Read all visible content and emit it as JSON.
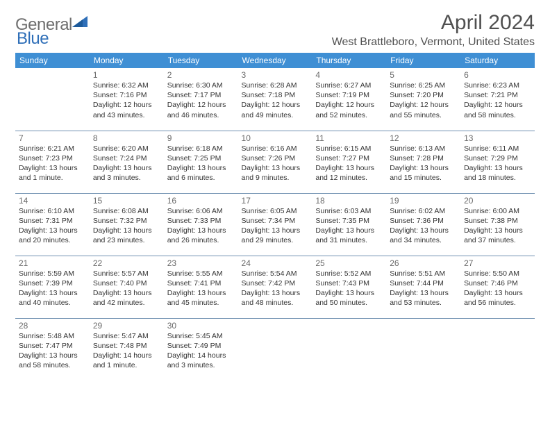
{
  "brand": {
    "general": "General",
    "blue": "Blue"
  },
  "title": "April 2024",
  "location": "West Brattleboro, Vermont, United States",
  "colors": {
    "header_bg": "#3f8fd4",
    "header_text": "#ffffff",
    "rule": "#6e8fb0",
    "text": "#333333",
    "muted": "#6a6a6a",
    "brand_gray": "#6f6f6f",
    "brand_blue": "#2f6fb8",
    "background": "#ffffff"
  },
  "typography": {
    "title_fontsize": 30,
    "location_fontsize": 16,
    "header_cell_fontsize": 12,
    "daynum_fontsize": 12,
    "body_fontsize": 10.5
  },
  "day_headers": [
    "Sunday",
    "Monday",
    "Tuesday",
    "Wednesday",
    "Thursday",
    "Friday",
    "Saturday"
  ],
  "weeks": [
    [
      null,
      {
        "n": "1",
        "sunrise": "Sunrise: 6:32 AM",
        "sunset": "Sunset: 7:16 PM",
        "d1": "Daylight: 12 hours",
        "d2": "and 43 minutes."
      },
      {
        "n": "2",
        "sunrise": "Sunrise: 6:30 AM",
        "sunset": "Sunset: 7:17 PM",
        "d1": "Daylight: 12 hours",
        "d2": "and 46 minutes."
      },
      {
        "n": "3",
        "sunrise": "Sunrise: 6:28 AM",
        "sunset": "Sunset: 7:18 PM",
        "d1": "Daylight: 12 hours",
        "d2": "and 49 minutes."
      },
      {
        "n": "4",
        "sunrise": "Sunrise: 6:27 AM",
        "sunset": "Sunset: 7:19 PM",
        "d1": "Daylight: 12 hours",
        "d2": "and 52 minutes."
      },
      {
        "n": "5",
        "sunrise": "Sunrise: 6:25 AM",
        "sunset": "Sunset: 7:20 PM",
        "d1": "Daylight: 12 hours",
        "d2": "and 55 minutes."
      },
      {
        "n": "6",
        "sunrise": "Sunrise: 6:23 AM",
        "sunset": "Sunset: 7:21 PM",
        "d1": "Daylight: 12 hours",
        "d2": "and 58 minutes."
      }
    ],
    [
      {
        "n": "7",
        "sunrise": "Sunrise: 6:21 AM",
        "sunset": "Sunset: 7:23 PM",
        "d1": "Daylight: 13 hours",
        "d2": "and 1 minute."
      },
      {
        "n": "8",
        "sunrise": "Sunrise: 6:20 AM",
        "sunset": "Sunset: 7:24 PM",
        "d1": "Daylight: 13 hours",
        "d2": "and 3 minutes."
      },
      {
        "n": "9",
        "sunrise": "Sunrise: 6:18 AM",
        "sunset": "Sunset: 7:25 PM",
        "d1": "Daylight: 13 hours",
        "d2": "and 6 minutes."
      },
      {
        "n": "10",
        "sunrise": "Sunrise: 6:16 AM",
        "sunset": "Sunset: 7:26 PM",
        "d1": "Daylight: 13 hours",
        "d2": "and 9 minutes."
      },
      {
        "n": "11",
        "sunrise": "Sunrise: 6:15 AM",
        "sunset": "Sunset: 7:27 PM",
        "d1": "Daylight: 13 hours",
        "d2": "and 12 minutes."
      },
      {
        "n": "12",
        "sunrise": "Sunrise: 6:13 AM",
        "sunset": "Sunset: 7:28 PM",
        "d1": "Daylight: 13 hours",
        "d2": "and 15 minutes."
      },
      {
        "n": "13",
        "sunrise": "Sunrise: 6:11 AM",
        "sunset": "Sunset: 7:29 PM",
        "d1": "Daylight: 13 hours",
        "d2": "and 18 minutes."
      }
    ],
    [
      {
        "n": "14",
        "sunrise": "Sunrise: 6:10 AM",
        "sunset": "Sunset: 7:31 PM",
        "d1": "Daylight: 13 hours",
        "d2": "and 20 minutes."
      },
      {
        "n": "15",
        "sunrise": "Sunrise: 6:08 AM",
        "sunset": "Sunset: 7:32 PM",
        "d1": "Daylight: 13 hours",
        "d2": "and 23 minutes."
      },
      {
        "n": "16",
        "sunrise": "Sunrise: 6:06 AM",
        "sunset": "Sunset: 7:33 PM",
        "d1": "Daylight: 13 hours",
        "d2": "and 26 minutes."
      },
      {
        "n": "17",
        "sunrise": "Sunrise: 6:05 AM",
        "sunset": "Sunset: 7:34 PM",
        "d1": "Daylight: 13 hours",
        "d2": "and 29 minutes."
      },
      {
        "n": "18",
        "sunrise": "Sunrise: 6:03 AM",
        "sunset": "Sunset: 7:35 PM",
        "d1": "Daylight: 13 hours",
        "d2": "and 31 minutes."
      },
      {
        "n": "19",
        "sunrise": "Sunrise: 6:02 AM",
        "sunset": "Sunset: 7:36 PM",
        "d1": "Daylight: 13 hours",
        "d2": "and 34 minutes."
      },
      {
        "n": "20",
        "sunrise": "Sunrise: 6:00 AM",
        "sunset": "Sunset: 7:38 PM",
        "d1": "Daylight: 13 hours",
        "d2": "and 37 minutes."
      }
    ],
    [
      {
        "n": "21",
        "sunrise": "Sunrise: 5:59 AM",
        "sunset": "Sunset: 7:39 PM",
        "d1": "Daylight: 13 hours",
        "d2": "and 40 minutes."
      },
      {
        "n": "22",
        "sunrise": "Sunrise: 5:57 AM",
        "sunset": "Sunset: 7:40 PM",
        "d1": "Daylight: 13 hours",
        "d2": "and 42 minutes."
      },
      {
        "n": "23",
        "sunrise": "Sunrise: 5:55 AM",
        "sunset": "Sunset: 7:41 PM",
        "d1": "Daylight: 13 hours",
        "d2": "and 45 minutes."
      },
      {
        "n": "24",
        "sunrise": "Sunrise: 5:54 AM",
        "sunset": "Sunset: 7:42 PM",
        "d1": "Daylight: 13 hours",
        "d2": "and 48 minutes."
      },
      {
        "n": "25",
        "sunrise": "Sunrise: 5:52 AM",
        "sunset": "Sunset: 7:43 PM",
        "d1": "Daylight: 13 hours",
        "d2": "and 50 minutes."
      },
      {
        "n": "26",
        "sunrise": "Sunrise: 5:51 AM",
        "sunset": "Sunset: 7:44 PM",
        "d1": "Daylight: 13 hours",
        "d2": "and 53 minutes."
      },
      {
        "n": "27",
        "sunrise": "Sunrise: 5:50 AM",
        "sunset": "Sunset: 7:46 PM",
        "d1": "Daylight: 13 hours",
        "d2": "and 56 minutes."
      }
    ],
    [
      {
        "n": "28",
        "sunrise": "Sunrise: 5:48 AM",
        "sunset": "Sunset: 7:47 PM",
        "d1": "Daylight: 13 hours",
        "d2": "and 58 minutes."
      },
      {
        "n": "29",
        "sunrise": "Sunrise: 5:47 AM",
        "sunset": "Sunset: 7:48 PM",
        "d1": "Daylight: 14 hours",
        "d2": "and 1 minute."
      },
      {
        "n": "30",
        "sunrise": "Sunrise: 5:45 AM",
        "sunset": "Sunset: 7:49 PM",
        "d1": "Daylight: 14 hours",
        "d2": "and 3 minutes."
      },
      null,
      null,
      null,
      null
    ]
  ]
}
